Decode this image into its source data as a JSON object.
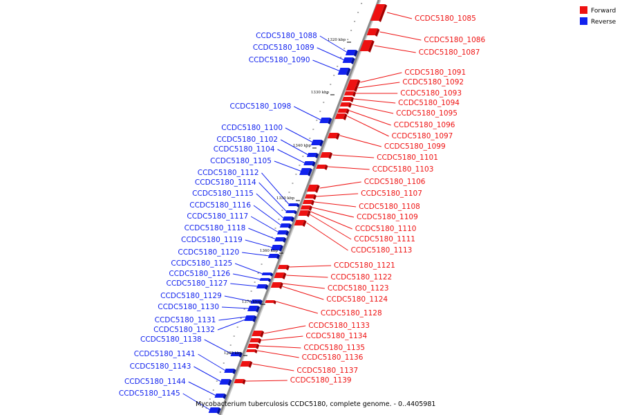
{
  "caption": "Mycobacterium tuberculosis CCDC5180, complete genome. - 0..4405981",
  "colors": {
    "forward": "#ee1111",
    "reverse": "#1122ee",
    "axis": "#8a8a8a"
  },
  "legend": [
    {
      "label": "Forward",
      "color": "#ee1111"
    },
    {
      "label": "Reverse",
      "color": "#1122ee"
    }
  ],
  "kbp_marks": [
    "1320 kbp",
    "1330 kbp",
    "1340 kbp",
    "1350 kbp",
    "1360 kbp",
    "1370 kbp",
    "1380 kbp"
  ],
  "genes": [
    {
      "name": "CCDC5180_1085",
      "strand": "forward"
    },
    {
      "name": "CCDC5180_1086",
      "strand": "forward"
    },
    {
      "name": "CCDC5180_1087",
      "strand": "forward"
    },
    {
      "name": "CCDC5180_1088",
      "strand": "reverse"
    },
    {
      "name": "CCDC5180_1089",
      "strand": "reverse"
    },
    {
      "name": "CCDC5180_1090",
      "strand": "reverse"
    },
    {
      "name": "CCDC5180_1091",
      "strand": "forward"
    },
    {
      "name": "CCDC5180_1092",
      "strand": "forward"
    },
    {
      "name": "CCDC5180_1093",
      "strand": "forward"
    },
    {
      "name": "CCDC5180_1094",
      "strand": "forward"
    },
    {
      "name": "CCDC5180_1095",
      "strand": "forward"
    },
    {
      "name": "CCDC5180_1096",
      "strand": "forward"
    },
    {
      "name": "CCDC5180_1097",
      "strand": "forward"
    },
    {
      "name": "CCDC5180_1098",
      "strand": "reverse"
    },
    {
      "name": "CCDC5180_1099",
      "strand": "forward"
    },
    {
      "name": "CCDC5180_1100",
      "strand": "reverse"
    },
    {
      "name": "CCDC5180_1101",
      "strand": "forward"
    },
    {
      "name": "CCDC5180_1102",
      "strand": "reverse"
    },
    {
      "name": "CCDC5180_1103",
      "strand": "forward"
    },
    {
      "name": "CCDC5180_1104",
      "strand": "reverse"
    },
    {
      "name": "CCDC5180_1105",
      "strand": "reverse"
    },
    {
      "name": "CCDC5180_1106",
      "strand": "forward"
    },
    {
      "name": "CCDC5180_1107",
      "strand": "forward"
    },
    {
      "name": "CCDC5180_1108",
      "strand": "forward"
    },
    {
      "name": "CCDC5180_1109",
      "strand": "forward"
    },
    {
      "name": "CCDC5180_1110",
      "strand": "forward"
    },
    {
      "name": "CCDC5180_1111",
      "strand": "forward"
    },
    {
      "name": "CCDC5180_1112",
      "strand": "reverse"
    },
    {
      "name": "CCDC5180_1113",
      "strand": "forward"
    },
    {
      "name": "CCDC5180_1114",
      "strand": "reverse"
    },
    {
      "name": "CCDC5180_1115",
      "strand": "reverse"
    },
    {
      "name": "CCDC5180_1116",
      "strand": "reverse"
    },
    {
      "name": "CCDC5180_1117",
      "strand": "reverse"
    },
    {
      "name": "CCDC5180_1118",
      "strand": "reverse"
    },
    {
      "name": "CCDC5180_1119",
      "strand": "reverse"
    },
    {
      "name": "CCDC5180_1120",
      "strand": "reverse"
    },
    {
      "name": "CCDC5180_1121",
      "strand": "forward"
    },
    {
      "name": "CCDC5180_1122",
      "strand": "forward"
    },
    {
      "name": "CCDC5180_1123",
      "strand": "forward"
    },
    {
      "name": "CCDC5180_1124",
      "strand": "forward"
    },
    {
      "name": "CCDC5180_1125",
      "strand": "reverse"
    },
    {
      "name": "CCDC5180_1126",
      "strand": "reverse"
    },
    {
      "name": "CCDC5180_1127",
      "strand": "reverse"
    },
    {
      "name": "CCDC5180_1128",
      "strand": "forward"
    },
    {
      "name": "CCDC5180_1129",
      "strand": "reverse"
    },
    {
      "name": "CCDC5180_1130",
      "strand": "reverse"
    },
    {
      "name": "CCDC5180_1131",
      "strand": "reverse"
    },
    {
      "name": "CCDC5180_1132",
      "strand": "reverse"
    },
    {
      "name": "CCDC5180_1133",
      "strand": "forward"
    },
    {
      "name": "CCDC5180_1134",
      "strand": "forward"
    },
    {
      "name": "CCDC5180_1135",
      "strand": "forward"
    },
    {
      "name": "CCDC5180_1136",
      "strand": "forward"
    },
    {
      "name": "CCDC5180_1137",
      "strand": "forward"
    },
    {
      "name": "CCDC5180_1138",
      "strand": "reverse"
    },
    {
      "name": "CCDC5180_1139",
      "strand": "forward"
    },
    {
      "name": "CCDC5180_1141",
      "strand": "reverse"
    },
    {
      "name": "CCDC5180_1143",
      "strand": "reverse"
    },
    {
      "name": "CCDC5180_1144",
      "strand": "reverse"
    },
    {
      "name": "CCDC5180_1145",
      "strand": "reverse"
    }
  ]
}
